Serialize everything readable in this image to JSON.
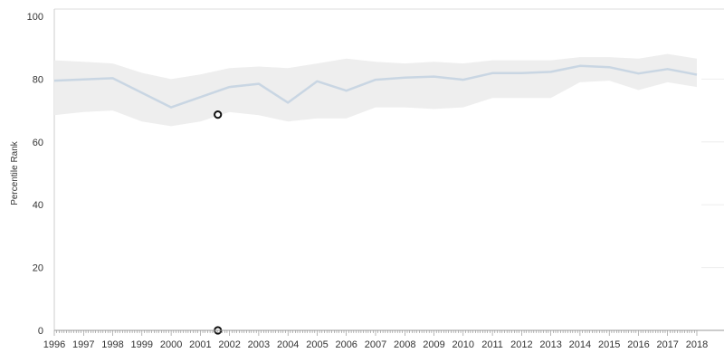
{
  "chart_data": {
    "type": "line",
    "title": "",
    "xlabel": "",
    "ylabel": "Percentile Rank",
    "x": [
      "1996",
      "1997",
      "1998",
      "1999",
      "2000",
      "2001",
      "2002",
      "2003",
      "2004",
      "2005",
      "2006",
      "2007",
      "2008",
      "2009",
      "2010",
      "2011",
      "2012",
      "2013",
      "2014",
      "2015",
      "2016",
      "2017",
      "2018"
    ],
    "ylim": [
      0,
      100
    ],
    "yticks": [
      "0",
      "20",
      "40",
      "60",
      "80",
      "100"
    ],
    "grid": false,
    "legend": "none",
    "series": [
      {
        "type": "line",
        "color": "#c9d6e3",
        "x": [
          "1996",
          "1998",
          "2000",
          "2002",
          "2003",
          "2004",
          "2005",
          "2006",
          "2007",
          "2008",
          "2009",
          "2010",
          "2011",
          "2012",
          "2013",
          "2014",
          "2015",
          "2016",
          "2017",
          "2018"
        ],
        "values": [
          79.5,
          80.3,
          71,
          77.5,
          78.5,
          72.5,
          79.3,
          76.3,
          79.8,
          80.5,
          80.8,
          79.8,
          81.9,
          81.9,
          82.3,
          84.2,
          83.8,
          81.8,
          83.2,
          81.4
        ]
      },
      {
        "type": "band",
        "color": "#eeeeee",
        "x": [
          "1996",
          "1997",
          "1998",
          "1999",
          "2000",
          "2001",
          "2002",
          "2003",
          "2004",
          "2005",
          "2006",
          "2007",
          "2008",
          "2009",
          "2010",
          "2011",
          "2012",
          "2013",
          "2014",
          "2015",
          "2016",
          "2017",
          "2018"
        ],
        "upper": [
          86,
          85.5,
          85,
          82,
          80,
          81.5,
          83.5,
          84,
          83.5,
          85,
          86.5,
          85.5,
          85,
          85.5,
          85,
          86,
          86,
          86,
          87,
          87,
          86.5,
          88,
          86.5
        ],
        "lower": [
          68.5,
          69.5,
          70,
          66.5,
          65,
          66.5,
          69.5,
          68.5,
          66.5,
          67.5,
          67.5,
          71,
          71,
          70.5,
          71,
          74,
          74,
          74,
          79,
          79.5,
          76.5,
          79,
          77.5
        ]
      },
      {
        "type": "scatter",
        "marker": "open-circle",
        "color": "#111111",
        "points": [
          {
            "x": "2001.6",
            "y": 68.7
          },
          {
            "x": "2001.6",
            "y": 0
          }
        ]
      }
    ]
  }
}
